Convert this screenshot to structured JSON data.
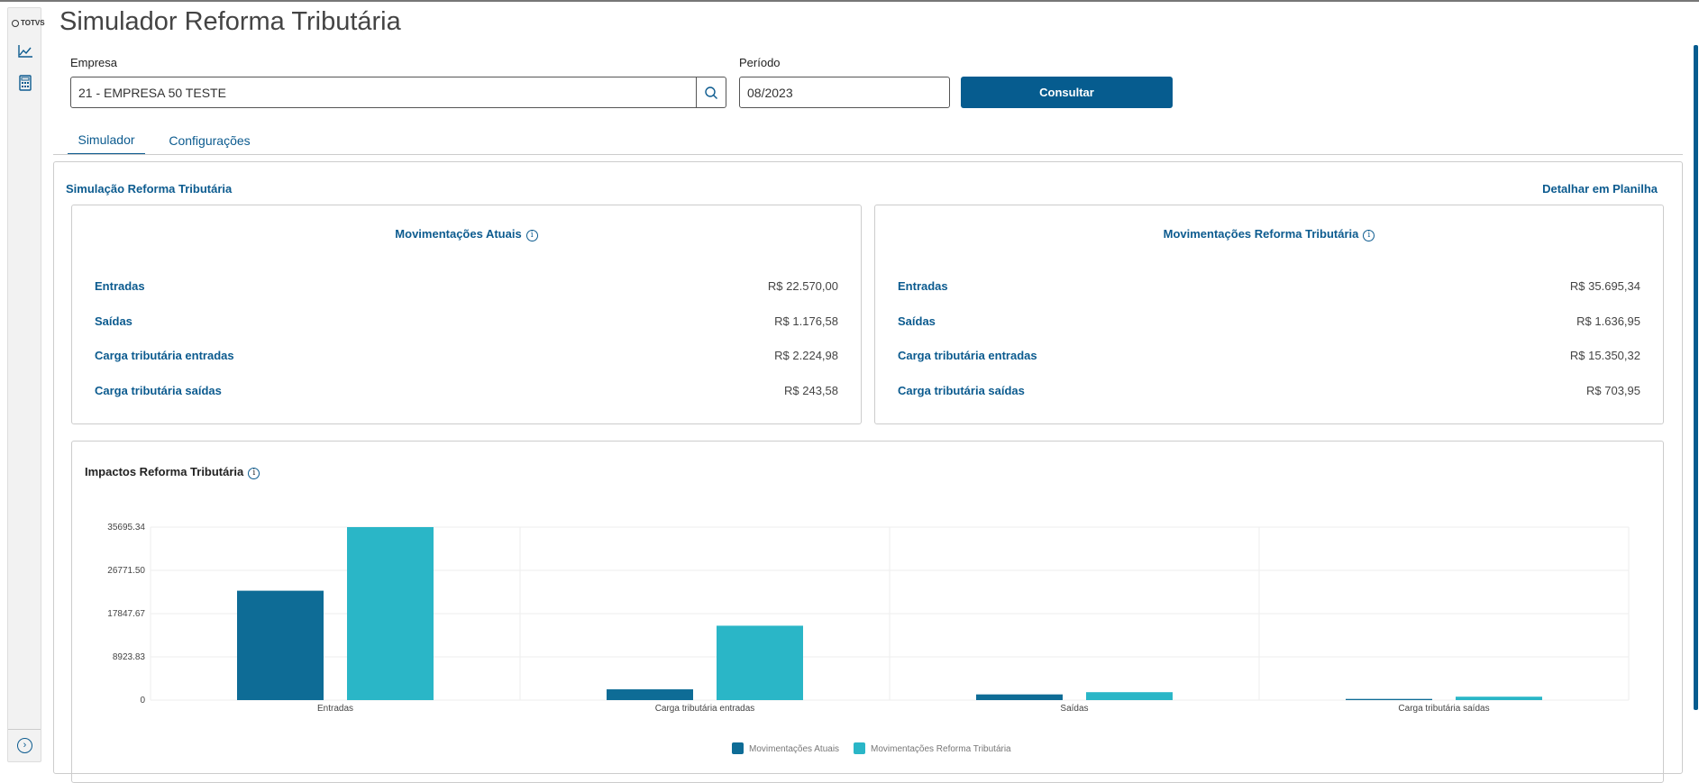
{
  "app": {
    "logo": "TOTVS",
    "title": "Simulador Reforma Tributária"
  },
  "sidebar": {
    "icons": [
      "chart-line-icon",
      "calculator-icon"
    ],
    "collapse_icon": "chevron-right-circle-icon"
  },
  "form": {
    "empresa_label": "Empresa",
    "empresa_value": "21 - EMPRESA 50 TESTE",
    "periodo_label": "Período",
    "periodo_value": "08/2023",
    "consultar_label": "Consultar"
  },
  "tabs": [
    {
      "label": "Simulador",
      "active": true
    },
    {
      "label": "Configurações",
      "active": false
    }
  ],
  "panel": {
    "title": "Simulação Reforma Tributária",
    "detail_link": "Detalhar em Planilha"
  },
  "cards": [
    {
      "title": "Movimentações Atuais",
      "rows": [
        {
          "label": "Entradas",
          "value": "R$ 22.570,00"
        },
        {
          "label": "Saídas",
          "value": "R$ 1.176,58"
        },
        {
          "label": "Carga tributária entradas",
          "value": "R$ 2.224,98"
        },
        {
          "label": "Carga tributária saídas",
          "value": "R$ 243,58"
        }
      ]
    },
    {
      "title": "Movimentações Reforma Tributária",
      "rows": [
        {
          "label": "Entradas",
          "value": "R$ 35.695,34"
        },
        {
          "label": "Saídas",
          "value": "R$ 1.636,95"
        },
        {
          "label": "Carga tributária entradas",
          "value": "R$ 15.350,32"
        },
        {
          "label": "Carga tributária saídas",
          "value": "R$ 703,95"
        }
      ]
    }
  ],
  "chart_data": {
    "type": "bar",
    "title": "Impactos Reforma Tributária",
    "categories": [
      "Entradas",
      "Carga tributária entradas",
      "Saídas",
      "Carga tributária saídas"
    ],
    "series": [
      {
        "name": "Movimentações Atuais",
        "color": "#0e6c96",
        "values": [
          22570.0,
          2224.98,
          1176.58,
          243.58
        ]
      },
      {
        "name": "Movimentações Reforma Tributária",
        "color": "#2ab6c7",
        "values": [
          35695.34,
          15350.32,
          1636.95,
          703.95
        ]
      }
    ],
    "yticks": [
      "0",
      "8923.83",
      "17847.67",
      "26771.50",
      "35695.34"
    ],
    "ylim": [
      0,
      35695.34
    ],
    "grid": true,
    "legend": "bottom-center"
  }
}
